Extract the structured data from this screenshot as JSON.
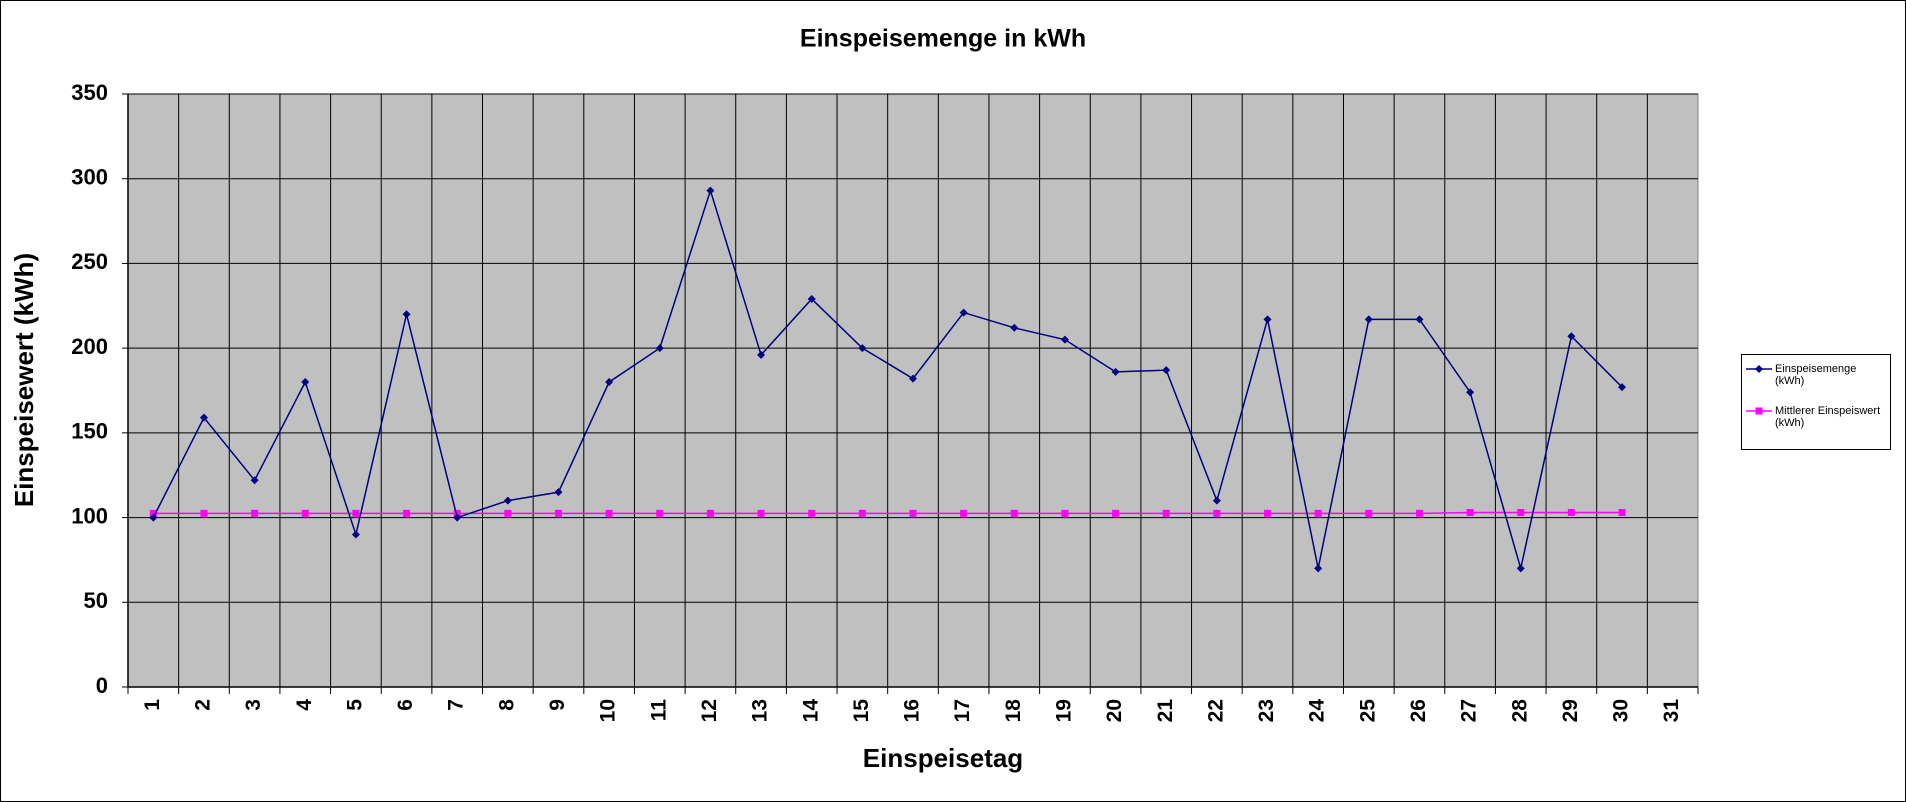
{
  "chart_data": {
    "type": "line",
    "title": "Einspeisemenge in kWh",
    "x_label": "Einspeisetag",
    "y_label": "Einspeisewert  (kWh)",
    "categories": [
      "1",
      "2",
      "3",
      "4",
      "5",
      "6",
      "7",
      "8",
      "9",
      "10",
      "11",
      "12",
      "13",
      "14",
      "15",
      "16",
      "17",
      "18",
      "19",
      "20",
      "21",
      "22",
      "23",
      "24",
      "25",
      "26",
      "27",
      "28",
      "29",
      "30",
      "31"
    ],
    "series": [
      {
        "name": "Einspeisemenge (kWh)",
        "color": "#000080",
        "marker": "diamond",
        "values": [
          100,
          159,
          122,
          180,
          90,
          220,
          100,
          110,
          115,
          180,
          200,
          293,
          196,
          229,
          200,
          182,
          221,
          212,
          205,
          186,
          187,
          110,
          217,
          70,
          217,
          217,
          174,
          70,
          207,
          177,
          null
        ]
      },
      {
        "name": "Mittlerer Einspeiswert (kWh)",
        "color": "#ff00ff",
        "marker": "square",
        "values": [
          102.5,
          102.5,
          102.5,
          102.5,
          102.5,
          102.5,
          102.5,
          102.5,
          102.5,
          102.5,
          102.5,
          102.5,
          102.5,
          102.5,
          102.5,
          102.5,
          102.5,
          102.5,
          102.5,
          102.5,
          102.5,
          102.5,
          102.5,
          102.5,
          102.5,
          102.5,
          103,
          103,
          103,
          103,
          null
        ]
      }
    ],
    "ylim": [
      0,
      350
    ],
    "yticks": [
      0,
      50,
      100,
      150,
      200,
      250,
      300,
      350
    ],
    "grid": true,
    "legend": "right"
  }
}
